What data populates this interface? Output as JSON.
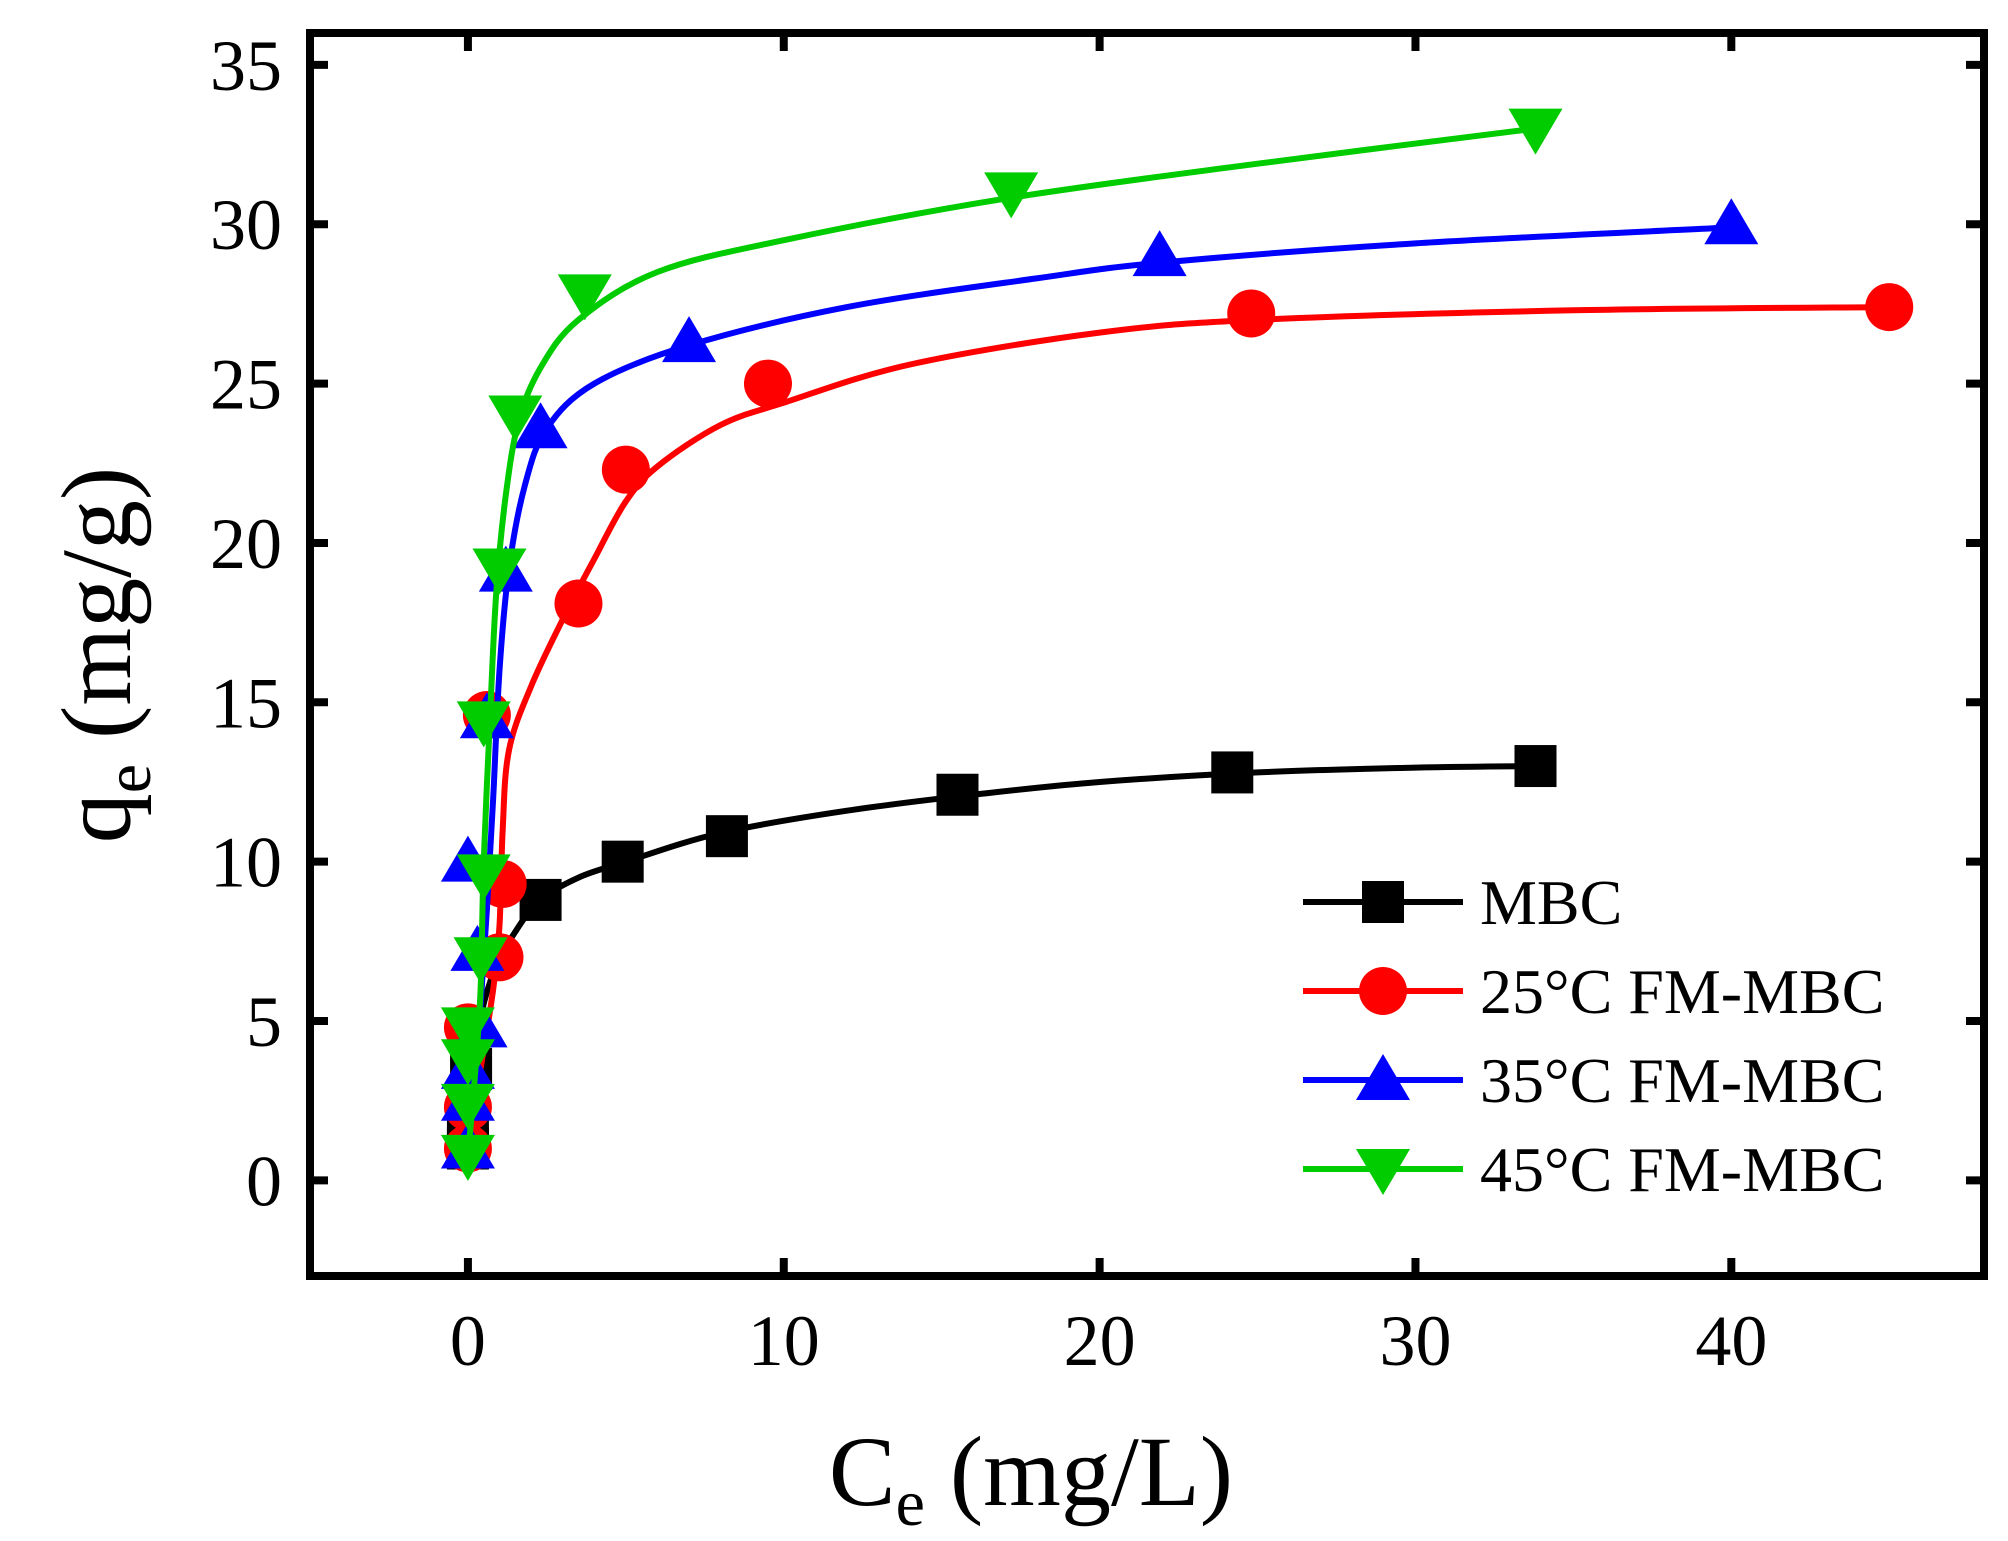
{
  "chart_data": {
    "type": "line",
    "title": "",
    "xlabel": {
      "main": "C",
      "sub": "e",
      "unit": " (mg/L)"
    },
    "ylabel": {
      "main": "q",
      "sub": "e",
      "unit": " (mg/g)"
    },
    "xlim": [
      -5,
      48
    ],
    "ylim": [
      -3,
      36
    ],
    "x_ticks": [
      0,
      10,
      20,
      30,
      40
    ],
    "y_ticks": [
      0,
      5,
      10,
      15,
      20,
      25,
      30,
      35
    ],
    "grid": false,
    "legend_position": "bottom-right",
    "series": [
      {
        "name": "MBC",
        "color": "#000000",
        "marker": "square",
        "points": [
          [
            0,
            1
          ],
          [
            0,
            2
          ],
          [
            0.1,
            3.5
          ],
          [
            2.3,
            8.8
          ],
          [
            4.9,
            10
          ],
          [
            8.2,
            10.8
          ],
          [
            15.5,
            12.1
          ],
          [
            24.2,
            12.8
          ],
          [
            33.8,
            13
          ]
        ],
        "fit": [
          [
            0,
            1
          ],
          [
            0.3,
            4.5
          ],
          [
            0.8,
            6.5
          ],
          [
            1.5,
            7.8
          ],
          [
            2.3,
            8.8
          ],
          [
            3.5,
            9.5
          ],
          [
            5,
            10
          ],
          [
            8,
            10.9
          ],
          [
            12,
            11.6
          ],
          [
            16,
            12.1
          ],
          [
            20,
            12.5
          ],
          [
            25,
            12.8
          ],
          [
            30,
            12.95
          ],
          [
            33.8,
            13
          ]
        ]
      },
      {
        "name": "25°C FM-MBC",
        "color": "#ff0000",
        "marker": "circle",
        "points": [
          [
            0,
            1
          ],
          [
            0,
            2.3
          ],
          [
            0,
            4.8
          ],
          [
            1,
            7
          ],
          [
            1.1,
            9.3
          ],
          [
            0.6,
            14.6
          ],
          [
            3.5,
            18.1
          ],
          [
            5,
            22.3
          ],
          [
            9.5,
            25
          ],
          [
            24.8,
            27.2
          ],
          [
            45,
            27.4
          ]
        ],
        "fit": [
          [
            0,
            1
          ],
          [
            0.4,
            3.5
          ],
          [
            0.8,
            6
          ],
          [
            1,
            8
          ],
          [
            1.1,
            11
          ],
          [
            1.3,
            13.5
          ],
          [
            2,
            15.5
          ],
          [
            3,
            17.6
          ],
          [
            4,
            19.5
          ],
          [
            5,
            21.3
          ],
          [
            6,
            22.4
          ],
          [
            8,
            23.7
          ],
          [
            10,
            24.4
          ],
          [
            14,
            25.6
          ],
          [
            20,
            26.6
          ],
          [
            25,
            27
          ],
          [
            35,
            27.3
          ],
          [
            45,
            27.4
          ]
        ]
      },
      {
        "name": "35°C FM-MBC",
        "color": "#0000ff",
        "marker": "triangle-up",
        "points": [
          [
            0,
            1
          ],
          [
            0,
            2.5
          ],
          [
            0,
            3.5
          ],
          [
            0.4,
            4.8
          ],
          [
            0.3,
            7.2
          ],
          [
            0,
            10
          ],
          [
            0.6,
            14.5
          ],
          [
            1.2,
            19.1
          ],
          [
            2.3,
            23.6
          ],
          [
            7,
            26.3
          ],
          [
            21.9,
            29
          ],
          [
            40,
            30
          ]
        ],
        "fit": [
          [
            0,
            1
          ],
          [
            0.2,
            3
          ],
          [
            0.4,
            5.5
          ],
          [
            0.6,
            8.5
          ],
          [
            0.8,
            12
          ],
          [
            1,
            16
          ],
          [
            1.3,
            19.2
          ],
          [
            1.8,
            21.8
          ],
          [
            2.5,
            23.6
          ],
          [
            4,
            25
          ],
          [
            7,
            26.2
          ],
          [
            12,
            27.4
          ],
          [
            18,
            28.3
          ],
          [
            22,
            28.8
          ],
          [
            30,
            29.4
          ],
          [
            40,
            29.9
          ]
        ]
      },
      {
        "name": "45°C FM-MBC",
        "color": "#00cc00",
        "marker": "triangle-down",
        "points": [
          [
            0,
            0.8
          ],
          [
            0,
            2.4
          ],
          [
            0,
            3.8
          ],
          [
            0,
            4.8
          ],
          [
            0.4,
            7
          ],
          [
            0.5,
            9.6
          ],
          [
            0.5,
            14.4
          ],
          [
            1,
            19.2
          ],
          [
            1.5,
            24
          ],
          [
            3.7,
            27.8
          ],
          [
            17.2,
            31
          ],
          [
            33.8,
            33
          ]
        ],
        "fit": [
          [
            0,
            0.8
          ],
          [
            0.2,
            3
          ],
          [
            0.4,
            6
          ],
          [
            0.5,
            10
          ],
          [
            0.7,
            14.5
          ],
          [
            0.9,
            18.5
          ],
          [
            1.2,
            21.5
          ],
          [
            1.6,
            23.8
          ],
          [
            2.3,
            25.5
          ],
          [
            3.5,
            27
          ],
          [
            6,
            28.5
          ],
          [
            10,
            29.5
          ],
          [
            17,
            30.8
          ],
          [
            25,
            31.9
          ],
          [
            33.8,
            33
          ]
        ]
      }
    ]
  }
}
